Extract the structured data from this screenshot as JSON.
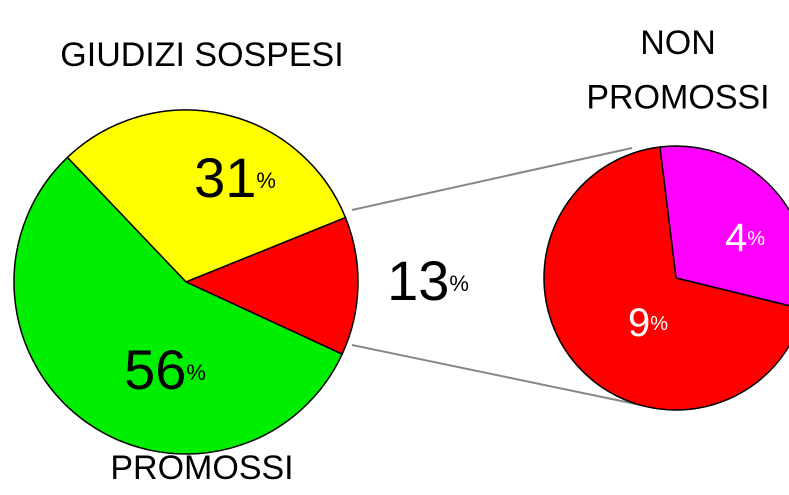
{
  "chart_data": [
    {
      "type": "pie",
      "categories": [
        "GIUDIZI SOSPESI",
        null,
        "PROMOSSI"
      ],
      "values": [
        31,
        13,
        56
      ],
      "value_labels": [
        "31%",
        "13%",
        "56%"
      ],
      "colors": [
        "#ffff00",
        "#ff0000",
        "#00ee00"
      ]
    },
    {
      "type": "pie",
      "title": "NON PROMOSSI",
      "values": [
        4,
        9
      ],
      "value_labels": [
        "4%",
        "9%"
      ],
      "colors": [
        "#ff00ff",
        "#ff0000"
      ]
    }
  ]
}
